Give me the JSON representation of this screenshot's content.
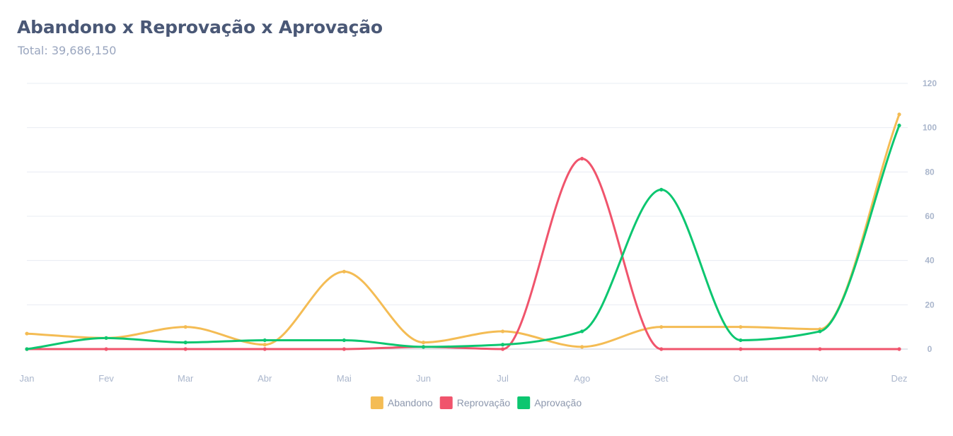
{
  "title": "Abandono x Reprovação x Aprovação",
  "subtitle": "Total: 39,686,150",
  "chart_data": {
    "type": "line",
    "categories": [
      "Jan",
      "Fev",
      "Mar",
      "Abr",
      "Mai",
      "Jun",
      "Jul",
      "Ago",
      "Set",
      "Out",
      "Nov",
      "Dez"
    ],
    "ylim": [
      0,
      120
    ],
    "yticks": [
      0,
      20,
      40,
      60,
      80,
      100,
      120
    ],
    "grid": true,
    "y_axis_side": "right",
    "legend_position": "bottom-center",
    "series": [
      {
        "name": "Abandono",
        "color": "#f4bc54",
        "values": [
          7,
          5,
          10,
          2,
          35,
          3,
          8,
          1,
          10,
          10,
          9,
          106
        ]
      },
      {
        "name": "Reprovação",
        "color": "#f0546c",
        "values": [
          0,
          0,
          0,
          0,
          0,
          1,
          0,
          86,
          0,
          0,
          0,
          0
        ]
      },
      {
        "name": "Aprovação",
        "color": "#0cc670",
        "values": [
          0,
          5,
          3,
          4,
          4,
          1,
          2,
          8,
          72,
          4,
          8,
          101
        ]
      }
    ]
  }
}
